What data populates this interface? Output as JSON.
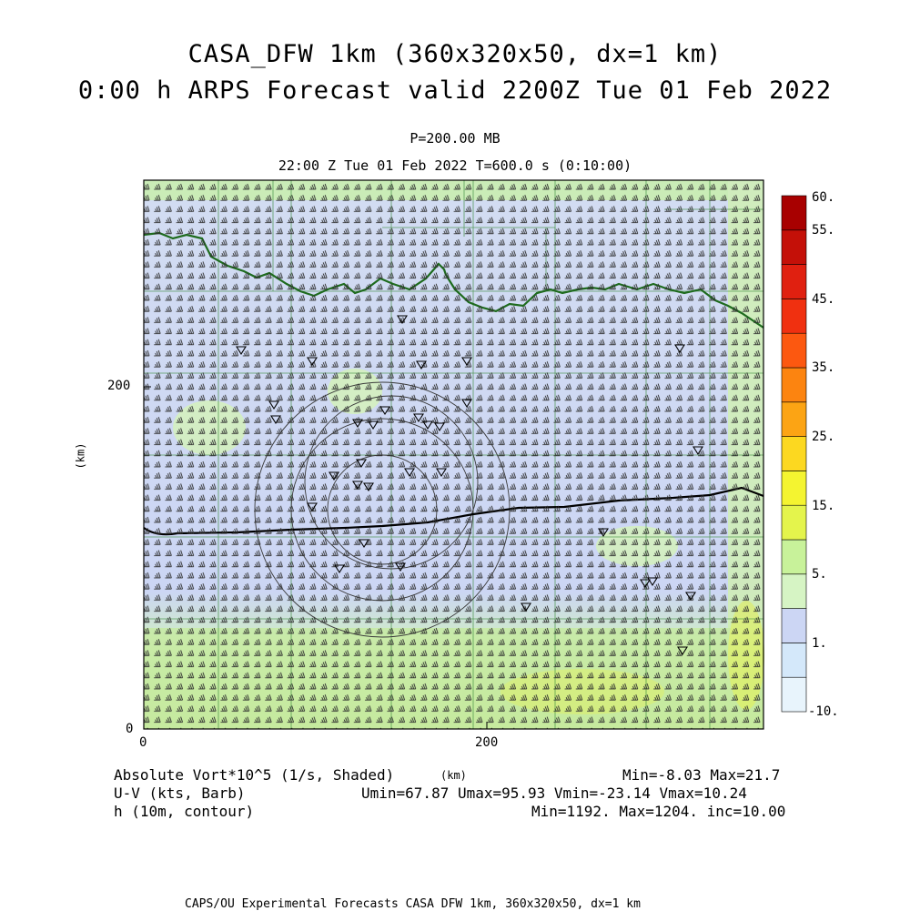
{
  "header": {
    "title_line1": "CASA_DFW 1km (360x320x50, dx=1 km)",
    "title_line2": "0:00 h ARPS Forecast valid 2200Z Tue 01 Feb 2022",
    "level": "P=200.00 MB",
    "time_line": "22:00 Z Tue 01 Feb 2022    T=600.0 s (0:10:00)"
  },
  "axes": {
    "y_label": "(km)",
    "x_label": "(km)",
    "y_ticks": [
      "200",
      "0"
    ],
    "x_ticks": [
      "0",
      "200"
    ]
  },
  "colorbar": {
    "labels": [
      "60.",
      "55.",
      "45.",
      "35.",
      "25.",
      "15.",
      "5.",
      "1.",
      "-10."
    ],
    "colors": [
      "#e8f4fc",
      "#d4e8fa",
      "#ccd6f4",
      "#d6f4c4",
      "#c8f29a",
      "#e4f44c",
      "#f4f430",
      "#fcd820",
      "#fca414",
      "#fc8410",
      "#fc5810",
      "#f03010",
      "#e02010",
      "#c41008",
      "#a80000"
    ]
  },
  "footer": {
    "field1": "Absolute Vort*10^5 (1/s, Shaded)",
    "field1_stats": "Min=-8.03 Max=21.7",
    "field2": "U-V (kts, Barb)",
    "field2_stats": "Umin=67.87 Umax=95.93 Vmin=-23.14 Vmax=10.24",
    "field3": "h (10m, contour)",
    "field3_stats": "Min=1192. Max=1204. inc=10.00",
    "credit": "CAPS/OU Experimental Forecasts  CASA DFW 1km, 360x320x50, dx=1 km"
  },
  "map_layers": {
    "shading_field": "absolute vorticity",
    "overlays": [
      "state-border",
      "county-lines",
      "height-contour",
      "radar-range-rings",
      "wind-barbs",
      "radar-site-markers"
    ]
  }
}
